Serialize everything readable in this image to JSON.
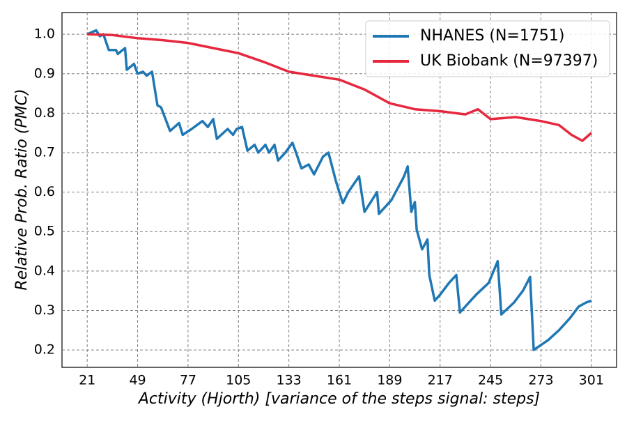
{
  "chart_data": {
    "type": "line",
    "xlabel": "Activity (Hjorth) [variance of the steps signal: steps]",
    "ylabel": "Relative Prob. Ratio (PMC)",
    "xlim": [
      7,
      315
    ],
    "ylim": [
      0.156,
      1.055
    ],
    "xticks": [
      21,
      49,
      77,
      105,
      133,
      161,
      189,
      217,
      245,
      273,
      301
    ],
    "yticks": [
      0.2,
      0.3,
      0.4,
      0.5,
      0.6,
      0.7,
      0.8,
      0.9,
      {
        "value": 1.0,
        "label": "1.0"
      }
    ],
    "grid": true,
    "legend": "upper right",
    "series": [
      {
        "name": "NHANES (N=1751)",
        "color": "#1f77b4",
        "x": [
          21,
          26,
          28,
          30,
          33,
          37,
          38,
          42,
          43,
          47,
          49,
          52,
          54,
          57,
          60,
          62,
          67,
          72,
          74,
          79,
          85,
          88,
          91,
          93,
          99,
          102,
          104,
          107,
          110,
          114,
          116,
          120,
          122,
          125,
          127,
          131,
          135,
          137,
          140,
          144,
          147,
          152,
          155,
          157,
          159,
          161,
          163,
          166,
          172,
          175,
          182,
          183,
          190,
          197,
          199,
          201,
          203,
          204,
          207,
          210,
          211,
          214,
          217,
          222,
          226,
          228,
          233,
          237,
          244,
          249,
          251,
          258,
          263,
          267,
          269,
          277,
          283,
          289,
          294,
          298,
          301
        ],
        "values": [
          1.0,
          1.01,
          0.995,
          1.0,
          0.96,
          0.96,
          0.95,
          0.965,
          0.91,
          0.925,
          0.9,
          0.905,
          0.895,
          0.905,
          0.82,
          0.815,
          0.755,
          0.775,
          0.745,
          0.76,
          0.78,
          0.765,
          0.785,
          0.735,
          0.76,
          0.745,
          0.76,
          0.765,
          0.705,
          0.72,
          0.7,
          0.72,
          0.7,
          0.72,
          0.68,
          0.7,
          0.725,
          0.7,
          0.66,
          0.67,
          0.645,
          0.69,
          0.7,
          0.665,
          0.63,
          0.6,
          0.572,
          0.6,
          0.64,
          0.55,
          0.6,
          0.545,
          0.58,
          0.64,
          0.665,
          0.55,
          0.575,
          0.505,
          0.455,
          0.48,
          0.39,
          0.325,
          0.34,
          0.37,
          0.39,
          0.295,
          0.32,
          0.34,
          0.37,
          0.425,
          0.29,
          0.32,
          0.35,
          0.385,
          0.2,
          0.225,
          0.25,
          0.28,
          0.31,
          0.32,
          0.325
        ]
      },
      {
        "name": "UK Biobank (N=97397)",
        "color": "#e6283f",
        "x": [
          21,
          35,
          49,
          63,
          77,
          91,
          105,
          119,
          133,
          147,
          161,
          175,
          189,
          203,
          217,
          231,
          238,
          245,
          259,
          273,
          283,
          290,
          296,
          301
        ],
        "values": [
          1.0,
          0.998,
          0.99,
          0.985,
          0.978,
          0.965,
          0.952,
          0.93,
          0.905,
          0.895,
          0.885,
          0.86,
          0.825,
          0.81,
          0.805,
          0.797,
          0.81,
          0.785,
          0.79,
          0.78,
          0.77,
          0.745,
          0.73,
          0.75
        ]
      }
    ]
  }
}
